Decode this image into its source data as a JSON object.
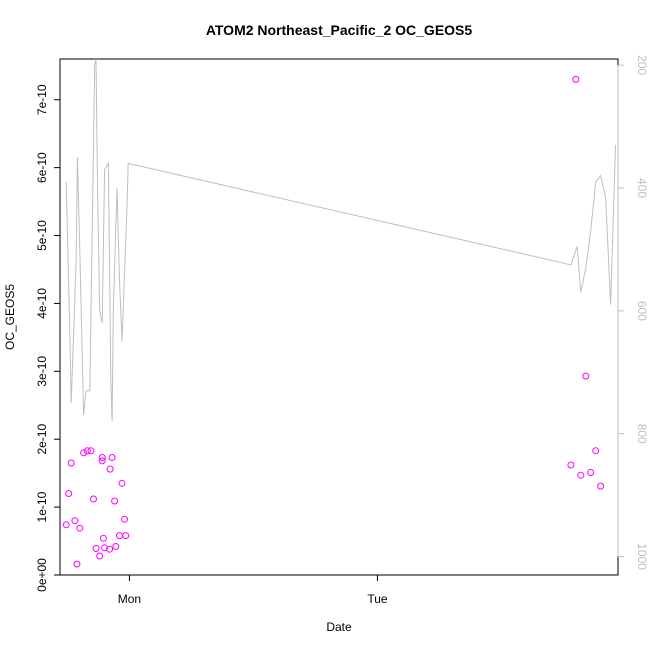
{
  "chart_data": {
    "type": "scatter",
    "title": "ATOM2 Northeast_Pacific_2 OC_GEOS5",
    "xlabel": "Date",
    "ylabel": "OC_GEOS5",
    "x_ticks": [
      {
        "label": "Mon",
        "pos": 0.0
      },
      {
        "label": "Tue",
        "pos": 1.0
      }
    ],
    "xlim": [
      -0.28,
      1.97
    ],
    "ylim": [
      0,
      7.6e-10
    ],
    "y_ticks": [
      "0e+00",
      "1e-10",
      "2e-10",
      "3e-10",
      "4e-10",
      "5e-10",
      "6e-10",
      "7e-10"
    ],
    "y_tick_values": [
      0,
      1e-10,
      2e-10,
      3e-10,
      4e-10,
      5e-10,
      6e-10,
      7e-10
    ],
    "right_axis": {
      "reversed": true,
      "ylim": [
        1030,
        190
      ],
      "ticks": [
        "200",
        "400",
        "600",
        "800",
        "1000"
      ],
      "tick_values": [
        200,
        400,
        600,
        800,
        1000
      ]
    },
    "series": [
      {
        "name": "",
        "kind": "points",
        "color": "#ff00ff",
        "points": [
          [
            -0.255,
            7.4e-11
          ],
          [
            -0.245,
            1.2e-10
          ],
          [
            -0.235,
            1.65e-10
          ],
          [
            -0.22,
            8e-11
          ],
          [
            -0.212,
            1.6e-11
          ],
          [
            -0.2,
            6.9e-11
          ],
          [
            -0.185,
            1.8e-10
          ],
          [
            -0.17,
            1.83e-10
          ],
          [
            -0.155,
            1.83e-10
          ],
          [
            -0.145,
            1.12e-10
          ],
          [
            -0.135,
            3.9e-11
          ],
          [
            -0.12,
            2.8e-11
          ],
          [
            -0.11,
            1.68e-10
          ],
          [
            -0.11,
            1.73e-10
          ],
          [
            -0.105,
            5.4e-11
          ],
          [
            -0.1,
            4e-11
          ],
          [
            -0.08,
            3.8e-11
          ],
          [
            -0.078,
            1.56e-10
          ],
          [
            -0.07,
            1.73e-10
          ],
          [
            -0.06,
            1.09e-10
          ],
          [
            -0.055,
            4.2e-11
          ],
          [
            -0.04,
            5.8e-11
          ],
          [
            -0.03,
            1.35e-10
          ],
          [
            -0.02,
            8.2e-11
          ],
          [
            -0.015,
            5.8e-11
          ],
          [
            1.78,
            1.62e-10
          ],
          [
            1.8,
            7.3e-10
          ],
          [
            1.82,
            1.47e-10
          ],
          [
            1.84,
            2.93e-10
          ],
          [
            1.86,
            1.51e-10
          ],
          [
            1.88,
            1.83e-10
          ],
          [
            1.9,
            1.31e-10
          ]
        ]
      },
      {
        "name": "",
        "kind": "line",
        "axis": "right",
        "color": "#bfbfbf",
        "points": [
          [
            -0.255,
            390
          ],
          [
            -0.24,
            640
          ],
          [
            -0.235,
            750
          ],
          [
            -0.215,
            520
          ],
          [
            -0.21,
            350
          ],
          [
            -0.2,
            500
          ],
          [
            -0.185,
            770
          ],
          [
            -0.175,
            730
          ],
          [
            -0.165,
            730
          ],
          [
            -0.16,
            730
          ],
          [
            -0.14,
            200
          ],
          [
            -0.135,
            190
          ],
          [
            -0.128,
            420
          ],
          [
            -0.12,
            600
          ],
          [
            -0.11,
            620
          ],
          [
            -0.1,
            370
          ],
          [
            -0.085,
            360
          ],
          [
            -0.075,
            710
          ],
          [
            -0.07,
            780
          ],
          [
            -0.065,
            600
          ],
          [
            -0.05,
            400
          ],
          [
            -0.04,
            550
          ],
          [
            -0.03,
            650
          ],
          [
            -0.01,
            430
          ],
          [
            -0.005,
            360
          ],
          [
            1.78,
            525
          ],
          [
            1.805,
            495
          ],
          [
            1.82,
            570
          ],
          [
            1.84,
            530
          ],
          [
            1.86,
            470
          ],
          [
            1.88,
            390
          ],
          [
            1.9,
            380
          ],
          [
            1.92,
            415
          ],
          [
            1.94,
            590
          ],
          [
            1.96,
            330
          ]
        ]
      }
    ],
    "grid": false,
    "legend": "none"
  }
}
